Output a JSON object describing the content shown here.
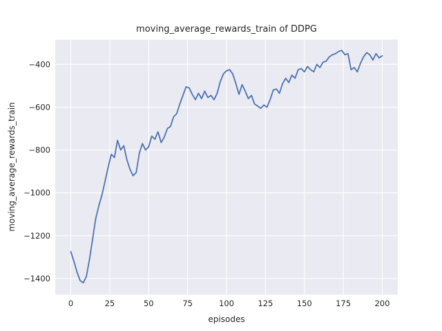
{
  "chart_data": {
    "type": "line",
    "title": "moving_average_rewards_train of DDPG",
    "xlabel": "episodes",
    "ylabel": "moving_average_rewards_train",
    "xlim": [
      -10,
      210
    ],
    "ylim": [
      -1475,
      -285
    ],
    "x_ticks": [
      0,
      25,
      50,
      75,
      100,
      125,
      150,
      175,
      200
    ],
    "y_ticks": [
      -400,
      -600,
      -800,
      -1000,
      -1200,
      -1400
    ],
    "grid": true,
    "legend": "none",
    "colors": {
      "line": "#4C72B0",
      "plot_background": "#EAEAF2",
      "grid": "#FFFFFF",
      "text": "#262626",
      "figure_background": "#FFFFFF"
    },
    "series": [
      {
        "name": "moving_average_rewards_train",
        "x": [
          0,
          2,
          4,
          6,
          8,
          10,
          12,
          14,
          16,
          18,
          20,
          22,
          24,
          26,
          28,
          30,
          32,
          34,
          36,
          38,
          40,
          42,
          44,
          46,
          48,
          50,
          52,
          54,
          56,
          58,
          60,
          62,
          64,
          66,
          68,
          70,
          72,
          74,
          76,
          78,
          80,
          82,
          84,
          86,
          88,
          90,
          92,
          94,
          96,
          98,
          100,
          102,
          104,
          106,
          108,
          110,
          112,
          114,
          116,
          118,
          120,
          122,
          124,
          126,
          128,
          130,
          132,
          134,
          136,
          138,
          140,
          142,
          144,
          146,
          148,
          150,
          152,
          154,
          156,
          158,
          160,
          162,
          164,
          166,
          168,
          170,
          172,
          174,
          176,
          178,
          180,
          182,
          184,
          186,
          188,
          190,
          192,
          194,
          196,
          198,
          200
        ],
        "y": [
          -1275,
          -1320,
          -1370,
          -1410,
          -1420,
          -1390,
          -1310,
          -1215,
          -1120,
          -1060,
          -1010,
          -945,
          -880,
          -820,
          -835,
          -755,
          -800,
          -780,
          -845,
          -890,
          -920,
          -905,
          -815,
          -770,
          -800,
          -785,
          -735,
          -750,
          -715,
          -765,
          -740,
          -700,
          -690,
          -645,
          -630,
          -585,
          -545,
          -505,
          -510,
          -540,
          -565,
          -535,
          -560,
          -525,
          -555,
          -545,
          -565,
          -535,
          -480,
          -445,
          -430,
          -425,
          -445,
          -490,
          -540,
          -495,
          -525,
          -560,
          -545,
          -585,
          -595,
          -605,
          -590,
          -600,
          -565,
          -520,
          -515,
          -535,
          -490,
          -465,
          -485,
          -450,
          -465,
          -425,
          -420,
          -435,
          -410,
          -425,
          -435,
          -400,
          -415,
          -390,
          -385,
          -365,
          -355,
          -350,
          -340,
          -335,
          -355,
          -350,
          -425,
          -415,
          -435,
          -395,
          -365,
          -345,
          -355,
          -380,
          -350,
          -370,
          -360
        ]
      }
    ]
  }
}
